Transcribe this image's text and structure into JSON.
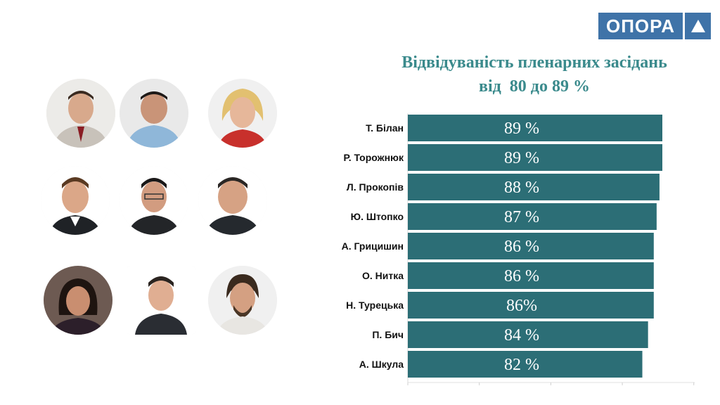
{
  "logo": {
    "text": "ОПОРА"
  },
  "title": {
    "line1": "Відвідуваність пленарних засідань",
    "line2": "від  80 до 89 %"
  },
  "photos": [
    "person-photo-1",
    "person-photo-2",
    "person-photo-3",
    "person-photo-4",
    "person-photo-5",
    "person-photo-6",
    "person-photo-7",
    "person-photo-8",
    "person-photo-9"
  ],
  "colors": {
    "bar": "#2c6e76",
    "title": "#3a8a8c",
    "logo": "#3f73a8"
  },
  "chart_data": {
    "type": "bar",
    "orientation": "horizontal",
    "categories": [
      "Т. Білан",
      "Р. Торожнюк",
      "Л. Прокопів",
      "Ю. Штопко",
      "А. Грицишин",
      "О. Нитка",
      "Н. Турецька",
      "П. Бич",
      "А. Шкула"
    ],
    "values": [
      89,
      89,
      88,
      87,
      86,
      86,
      86,
      84,
      82
    ],
    "value_labels": [
      "89 %",
      "89 %",
      "88 %",
      "87 %",
      "86 %",
      "86 %",
      "86%",
      "84 %",
      "82 %"
    ],
    "title": "Відвідуваність пленарних засідань від  80 до 89 %",
    "xlim": [
      0,
      100
    ],
    "grid": false,
    "legend": "none"
  }
}
